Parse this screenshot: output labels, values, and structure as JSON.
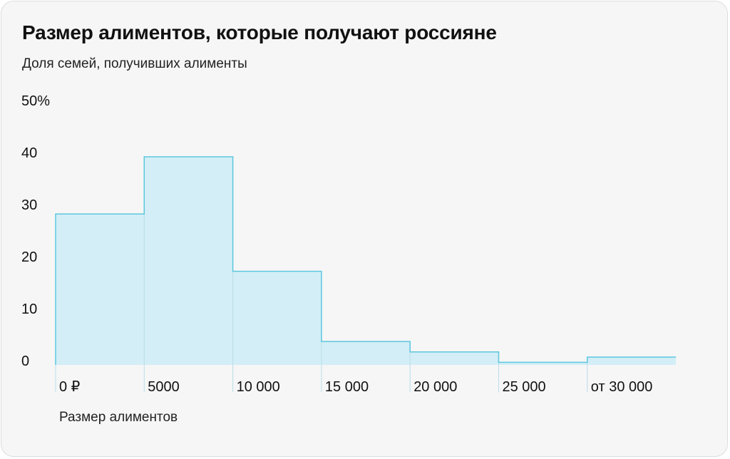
{
  "title": "Размер алиментов, которые получают россияне",
  "subtitle": "Доля семей, получивших алименты",
  "colors": {
    "bar_fill": "#d3eef6",
    "bar_stroke": "#5cc7df",
    "divider": "#b9dde8",
    "background": "#f6f6f6"
  },
  "chart_data": {
    "type": "bar",
    "subtype": "histogram-step",
    "title": "Размер алиментов, которые получают россияне",
    "subtitle": "Доля семей, получивших алименты",
    "xlabel": "Размер алиментов",
    "ylabel": "",
    "ylim": [
      0,
      50
    ],
    "y_ticks": [
      {
        "value": 0,
        "label": "0"
      },
      {
        "value": 10,
        "label": "10"
      },
      {
        "value": 20,
        "label": "20"
      },
      {
        "value": 30,
        "label": "30"
      },
      {
        "value": 40,
        "label": "40"
      },
      {
        "value": 50,
        "label": "50%"
      }
    ],
    "categories": [
      "0 ₽",
      "5000",
      "10 000",
      "15 000",
      "20 000",
      "25 000",
      "от 30 000"
    ],
    "values": [
      29,
      40,
      18,
      4.5,
      2.5,
      0.5,
      1.5
    ],
    "grid": false,
    "legend": "none"
  }
}
